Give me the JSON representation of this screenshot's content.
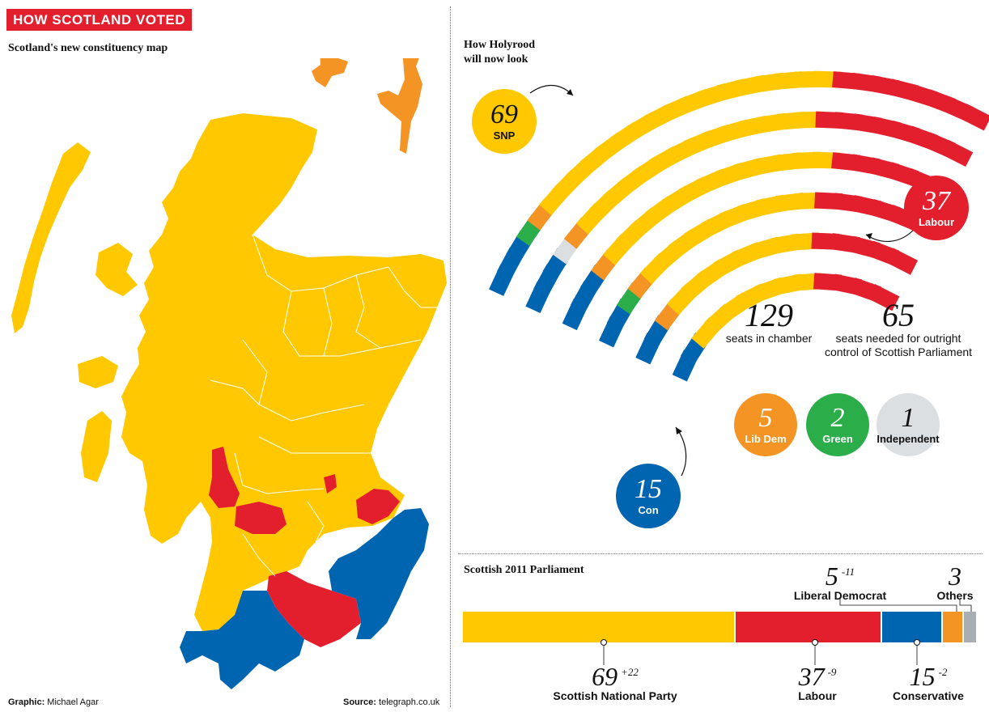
{
  "header": {
    "title": "HOW SCOTLAND VOTED",
    "subtitle": "Scotland's new constituency map"
  },
  "credits": {
    "graphic_label": "Graphic:",
    "graphic_value": "Michael Agar",
    "source_label": "Source:",
    "source_value": "telegraph.co.uk"
  },
  "colors": {
    "snp": "#ffc800",
    "labour": "#e31e2d",
    "con": "#0065b1",
    "libdem": "#f39425",
    "green": "#2bae4a",
    "independent": "#dcdfe2",
    "others": "#a9aeb3"
  },
  "holyrood": {
    "label_line1": "How Holyrood",
    "label_line2": "will now look",
    "total_seats": "129",
    "total_label": "seats in chamber",
    "majority": "65",
    "majority_label_line1": "seats needed for outright",
    "majority_label_line2": "control of Scottish Parliament"
  },
  "chart_data": [
    {
      "type": "parliament",
      "title": "How Holyrood will now look",
      "total": 129,
      "categories": [
        "SNP",
        "Labour",
        "Con",
        "Lib Dem",
        "Green",
        "Independent"
      ],
      "values": [
        69,
        37,
        15,
        5,
        2,
        1
      ],
      "colors": [
        "#ffc800",
        "#e31e2d",
        "#0065b1",
        "#f39425",
        "#2bae4a",
        "#dcdfe2"
      ]
    },
    {
      "type": "bar",
      "title": "Scottish 2011 Parliament",
      "categories": [
        "Scottish National Party",
        "Labour",
        "Conservative",
        "Liberal Democrat",
        "Others"
      ],
      "values": [
        69,
        37,
        15,
        5,
        3
      ],
      "changes": [
        "+22",
        "-9",
        "-2",
        "-11",
        ""
      ],
      "colors": [
        "#ffc800",
        "#e31e2d",
        "#0065b1",
        "#f39425",
        "#a9aeb3"
      ]
    }
  ]
}
